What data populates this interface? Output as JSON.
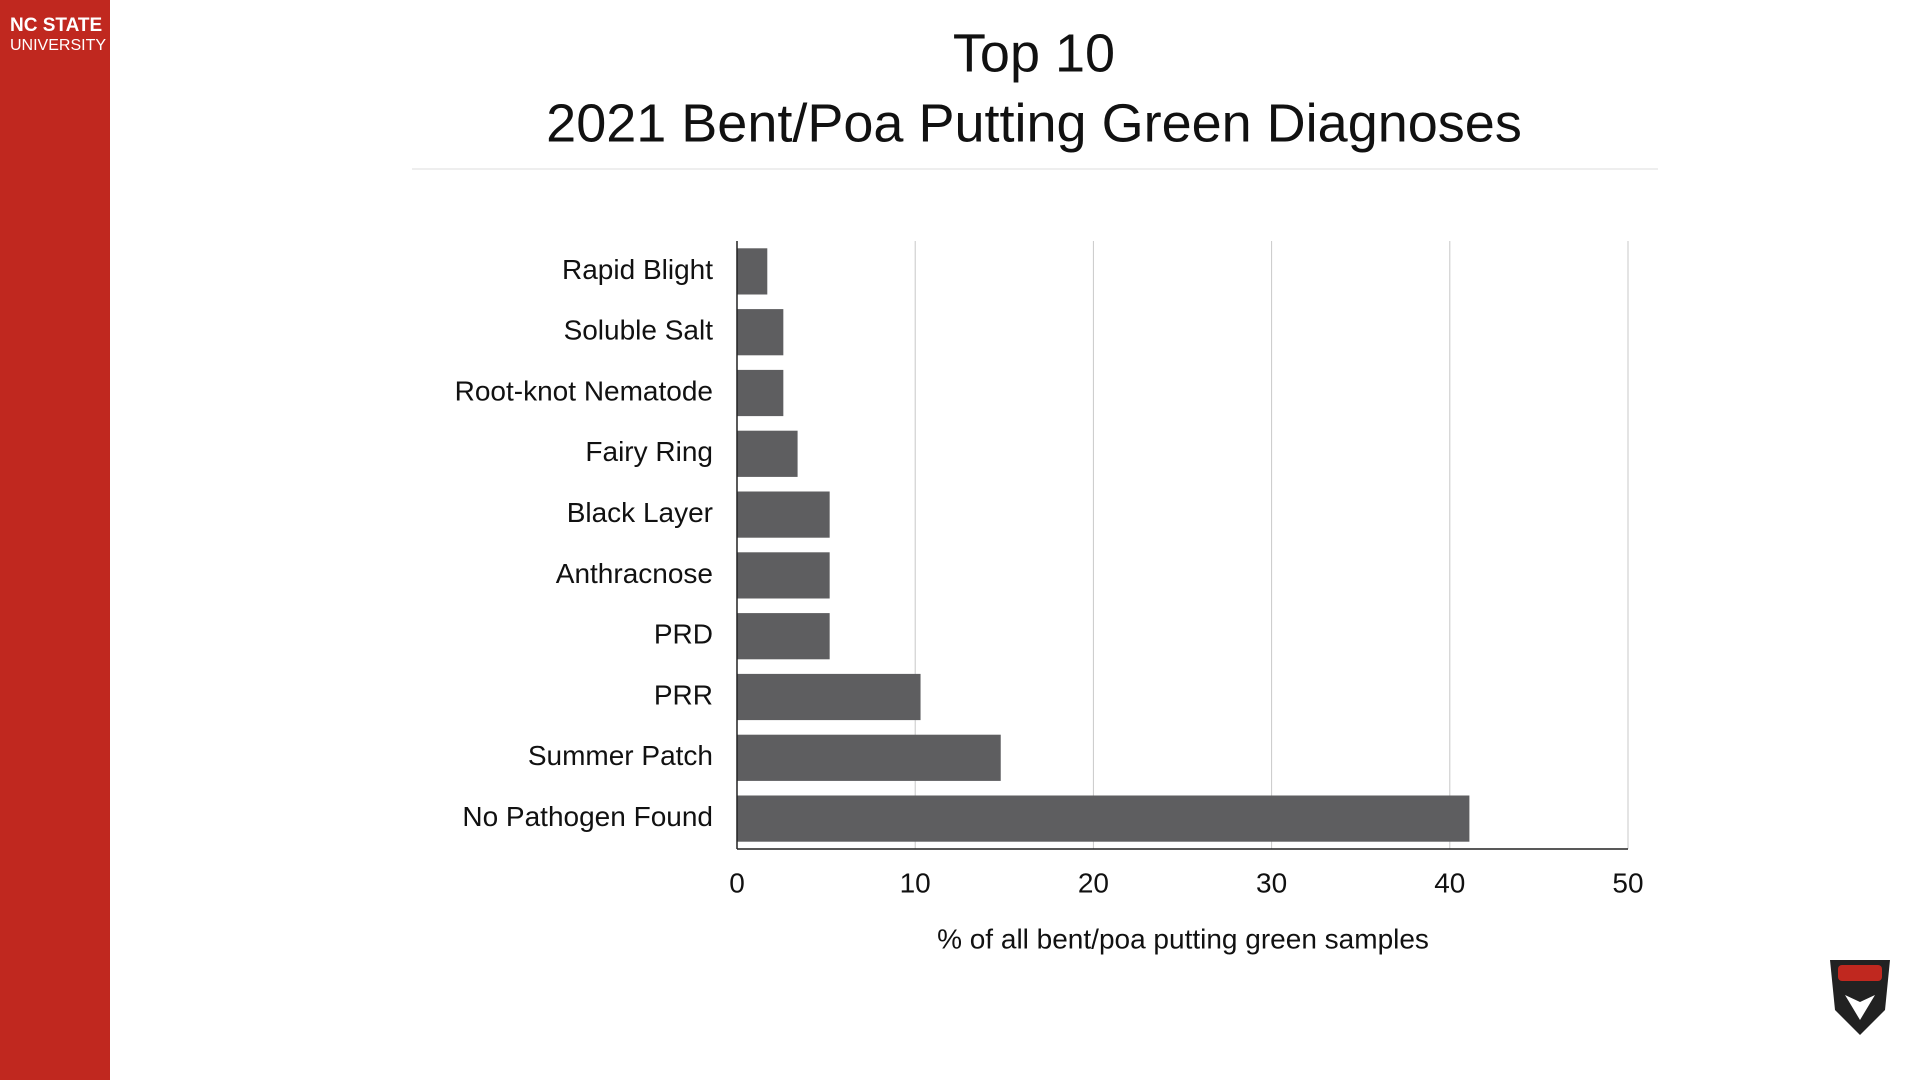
{
  "branding": {
    "line1": "NC STATE",
    "line2": "UNIVERSITY"
  },
  "chart_data": {
    "type": "bar",
    "orientation": "horizontal",
    "title": "Top 10",
    "subtitle": "2021 Bent/Poa Putting Green Diagnoses",
    "categories": [
      "Rapid Blight",
      "Soluble Salt",
      "Root-knot Nematode",
      "Fairy Ring",
      "Black Layer",
      "Anthracnose",
      "PRD",
      "PRR",
      "Summer Patch",
      "No Pathogen Found"
    ],
    "values": [
      1.7,
      2.6,
      2.6,
      3.4,
      5.2,
      5.2,
      5.2,
      10.3,
      14.8,
      41.1
    ],
    "color": "#5e5e60",
    "xlabel": "% of all bent/poa putting green samples",
    "xlim": [
      0,
      50
    ],
    "xticks": [
      0,
      10,
      20,
      30,
      40,
      50
    ],
    "grid": true
  }
}
